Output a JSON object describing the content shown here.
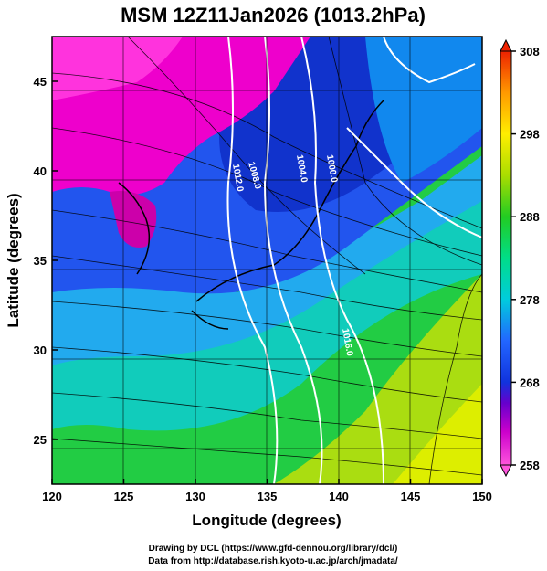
{
  "chart_data": {
    "type": "heatmap",
    "title": "MSM 12Z11Jan2026 (1013.2hPa)",
    "xlabel": "Longitude (degrees)",
    "ylabel": "Latitude  (degrees)",
    "xlim": [
      120,
      150
    ],
    "ylim": [
      22.5,
      47.5
    ],
    "x_ticks": [
      "120",
      "125",
      "130",
      "135",
      "140",
      "145",
      "150"
    ],
    "y_ticks": [
      "25",
      "30",
      "35",
      "40",
      "45"
    ],
    "colorbar": {
      "range": [
        258,
        308
      ],
      "ticks": [
        "258",
        "268",
        "278",
        "288",
        "298",
        "308"
      ]
    },
    "contour_labels": [
      "1008.0",
      "1012.0",
      "1000.0",
      "1004.0",
      "1016.0"
    ],
    "grid": true,
    "colors": {
      "cold": "#ee00cc",
      "cool": "#2244dd",
      "mild": "#00cccc",
      "warm": "#22dd44",
      "hot": "#ccee00",
      "contour": "#ffffff",
      "streamline": "#000000"
    }
  },
  "credits": {
    "line1": "Drawing by DCL (https://www.gfd-dennou.org/library/dcl/)",
    "line2": "Data from http://database.rish.kyoto-u.ac.jp/arch/jmadata/"
  }
}
